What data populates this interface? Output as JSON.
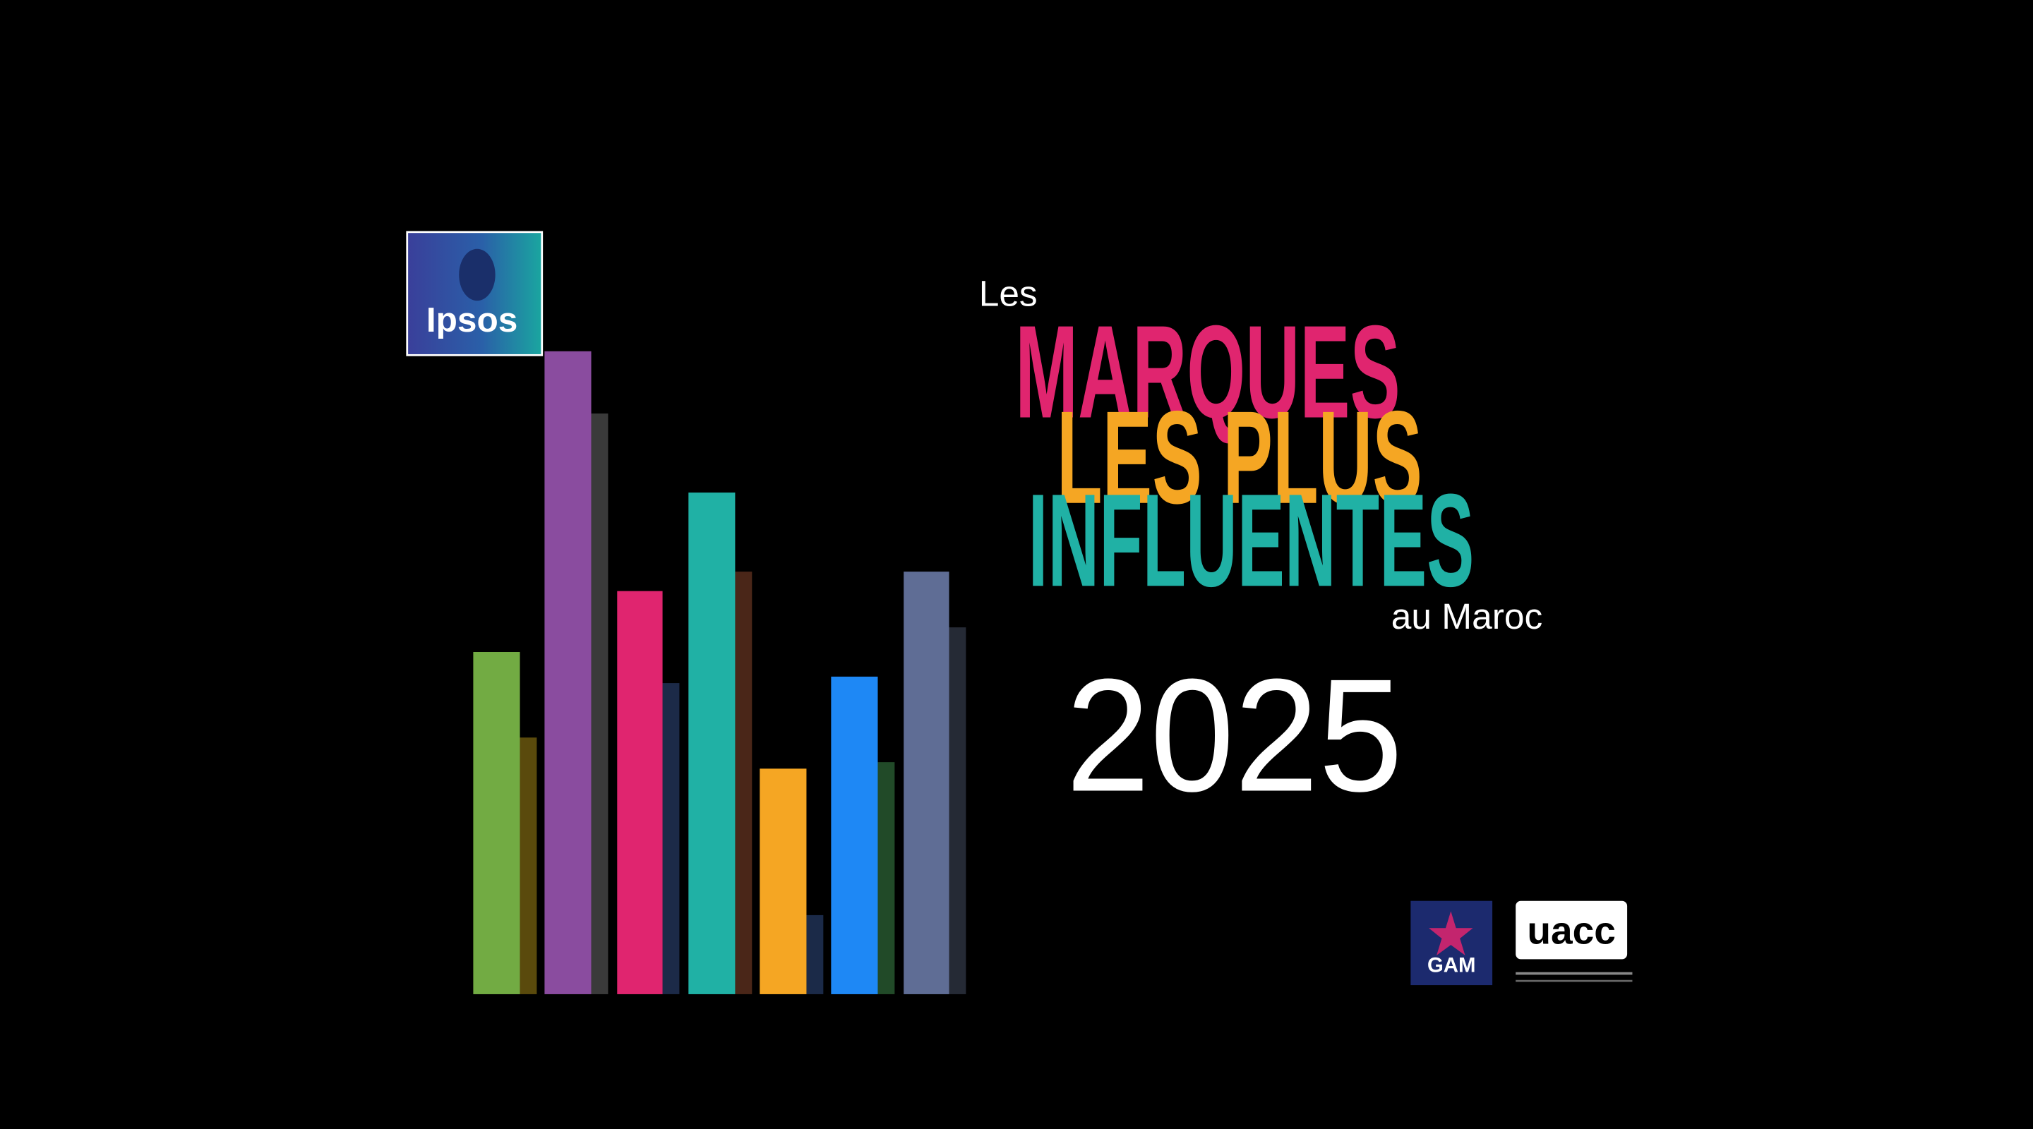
{
  "logo": {
    "name": "Ipsos"
  },
  "title": {
    "intro": "Les",
    "line1": "MARQUES",
    "line2": "LES PLUS",
    "line3": "INFLUENTES",
    "outro": "au Maroc",
    "year": "2025"
  },
  "partners": [
    "GAM",
    "uacc"
  ]
}
